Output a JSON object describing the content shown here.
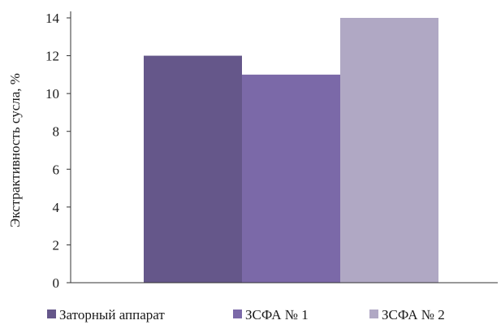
{
  "chart_data": {
    "type": "bar",
    "ylabel": "Экстрактивность сусла, %",
    "xlabel": "",
    "ylim": [
      0,
      14
    ],
    "yticks": [
      0,
      2,
      4,
      6,
      8,
      10,
      12,
      14
    ],
    "grid": false,
    "legend_position": "bottom",
    "series": [
      {
        "name": "Заторный аппарат",
        "value": 12,
        "color": "#65578a"
      },
      {
        "name": "ЗСФА № 1",
        "value": 11,
        "color": "#7b69a8"
      },
      {
        "name": "ЗСФА № 2",
        "value": 14,
        "color": "#b0a8c4"
      }
    ]
  }
}
